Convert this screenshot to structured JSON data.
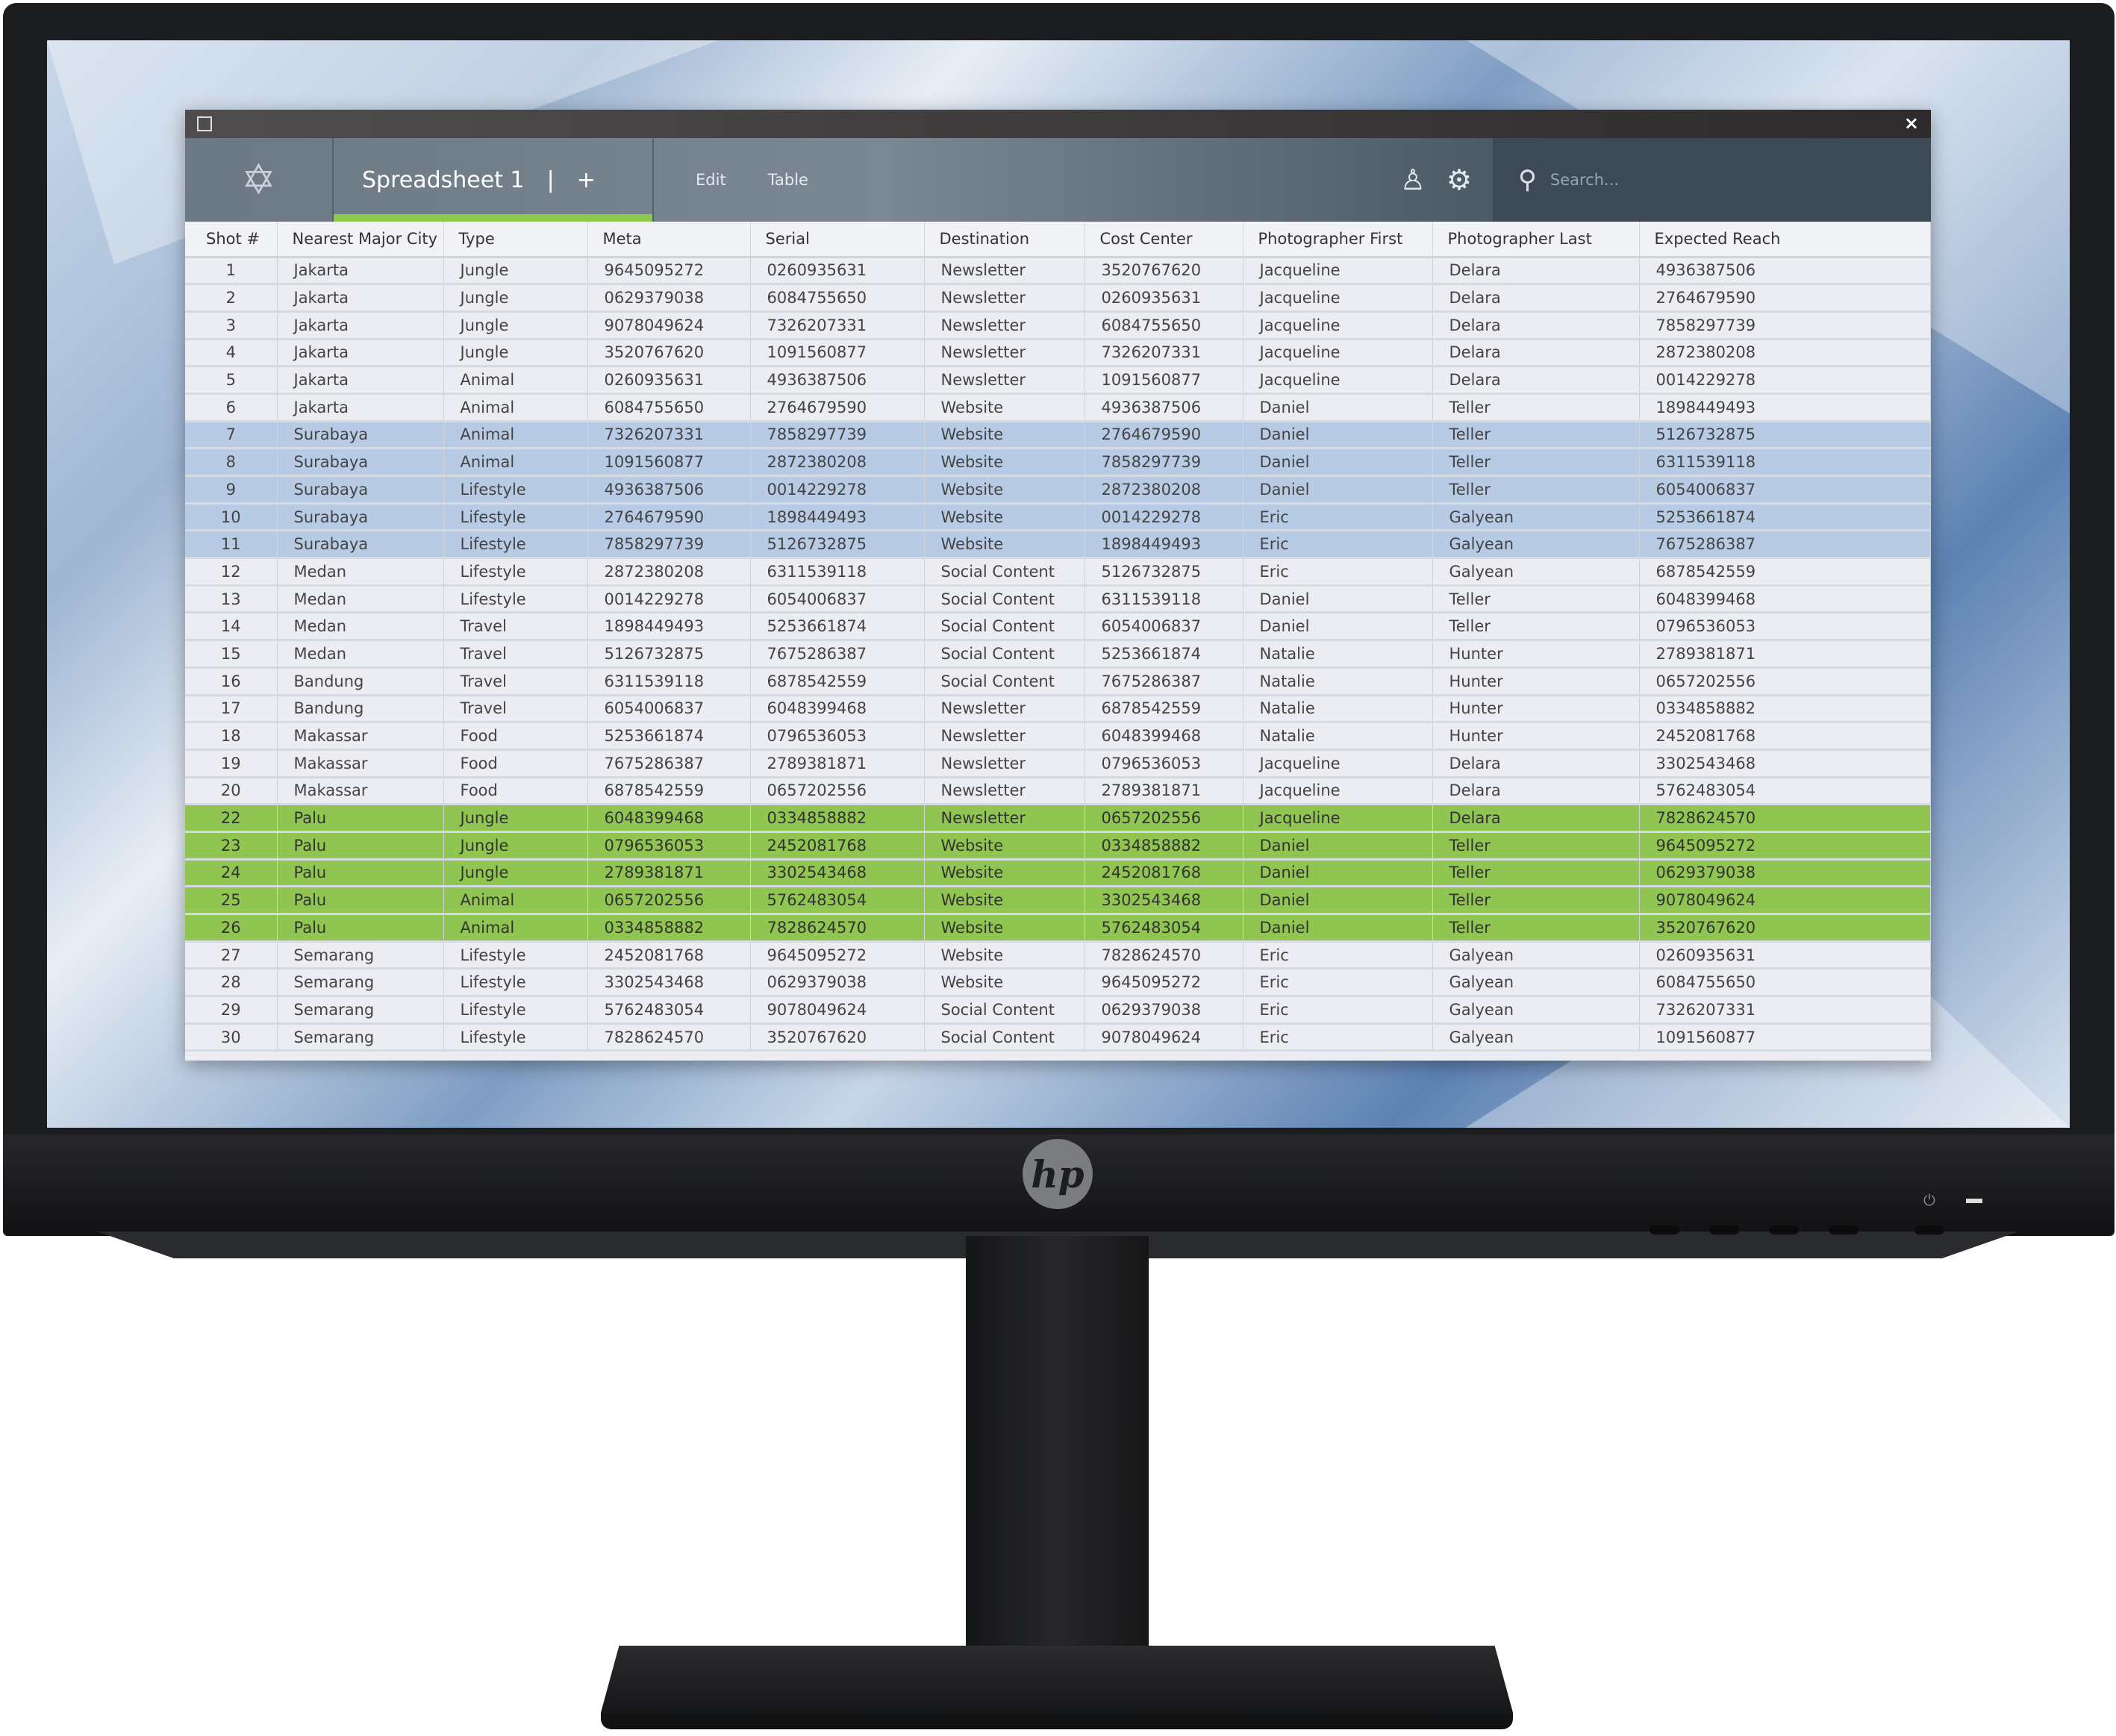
{
  "device": {
    "brand_logo": "hp"
  },
  "window": {
    "title_icon": "window-icon",
    "close_label": "×"
  },
  "header": {
    "tab_title": "Spreadsheet 1",
    "add_tab": "+",
    "menu": [
      "Edit",
      "Table"
    ],
    "search_placeholder": "Search...",
    "icons": [
      "user-icon",
      "gear-icon",
      "search-icon"
    ]
  },
  "colors": {
    "accent": "#8fc94d",
    "highlight_blue": "#b8cbe4",
    "highlight_green": "#8fc550"
  },
  "table": {
    "columns": [
      "Shot #",
      "Nearest Major City",
      "Type",
      "Meta",
      "Serial",
      "Destination",
      "Cost Center",
      "Photographer First",
      "Photographer Last",
      "Expected Reach"
    ],
    "rows": [
      {
        "h": "",
        "c": [
          "1",
          "Jakarta",
          "Jungle",
          "9645095272",
          "0260935631",
          "Newsletter",
          "3520767620",
          "Jacqueline",
          "Delara",
          "4936387506"
        ]
      },
      {
        "h": "",
        "c": [
          "2",
          "Jakarta",
          "Jungle",
          "0629379038",
          "6084755650",
          "Newsletter",
          "0260935631",
          "Jacqueline",
          "Delara",
          "2764679590"
        ]
      },
      {
        "h": "",
        "c": [
          "3",
          "Jakarta",
          "Jungle",
          "9078049624",
          "7326207331",
          "Newsletter",
          "6084755650",
          "Jacqueline",
          "Delara",
          "7858297739"
        ]
      },
      {
        "h": "",
        "c": [
          "4",
          "Jakarta",
          "Jungle",
          "3520767620",
          "1091560877",
          "Newsletter",
          "7326207331",
          "Jacqueline",
          "Delara",
          "2872380208"
        ]
      },
      {
        "h": "",
        "c": [
          "5",
          "Jakarta",
          "Animal",
          "0260935631",
          "4936387506",
          "Newsletter",
          "1091560877",
          "Jacqueline",
          "Delara",
          "0014229278"
        ]
      },
      {
        "h": "",
        "c": [
          "6",
          "Jakarta",
          "Animal",
          "6084755650",
          "2764679590",
          "Website",
          "4936387506",
          "Daniel",
          "Teller",
          "1898449493"
        ]
      },
      {
        "h": "blue",
        "c": [
          "7",
          "Surabaya",
          "Animal",
          "7326207331",
          "7858297739",
          "Website",
          "2764679590",
          "Daniel",
          "Teller",
          "5126732875"
        ]
      },
      {
        "h": "blue",
        "c": [
          "8",
          "Surabaya",
          "Animal",
          "1091560877",
          "2872380208",
          "Website",
          "7858297739",
          "Daniel",
          "Teller",
          "6311539118"
        ]
      },
      {
        "h": "blue",
        "c": [
          "9",
          "Surabaya",
          "Lifestyle",
          "4936387506",
          "0014229278",
          "Website",
          "2872380208",
          "Daniel",
          "Teller",
          "6054006837"
        ]
      },
      {
        "h": "blue",
        "c": [
          "10",
          "Surabaya",
          "Lifestyle",
          "2764679590",
          "1898449493",
          "Website",
          "0014229278",
          "Eric",
          "Galyean",
          "5253661874"
        ]
      },
      {
        "h": "blue",
        "c": [
          "11",
          "Surabaya",
          "Lifestyle",
          "7858297739",
          "5126732875",
          "Website",
          "1898449493",
          "Eric",
          "Galyean",
          "7675286387"
        ]
      },
      {
        "h": "",
        "c": [
          "12",
          "Medan",
          "Lifestyle",
          "2872380208",
          "6311539118",
          "Social Content",
          "5126732875",
          "Eric",
          "Galyean",
          "6878542559"
        ]
      },
      {
        "h": "",
        "c": [
          "13",
          "Medan",
          "Lifestyle",
          "0014229278",
          "6054006837",
          "Social Content",
          "6311539118",
          "Daniel",
          "Teller",
          "6048399468"
        ]
      },
      {
        "h": "",
        "c": [
          "14",
          "Medan",
          "Travel",
          "1898449493",
          "5253661874",
          "Social Content",
          "6054006837",
          "Daniel",
          "Teller",
          "0796536053"
        ]
      },
      {
        "h": "",
        "c": [
          "15",
          "Medan",
          "Travel",
          "5126732875",
          "7675286387",
          "Social Content",
          "5253661874",
          "Natalie",
          "Hunter",
          "2789381871"
        ]
      },
      {
        "h": "",
        "c": [
          "16",
          "Bandung",
          "Travel",
          "6311539118",
          "6878542559",
          "Social Content",
          "7675286387",
          "Natalie",
          "Hunter",
          "0657202556"
        ]
      },
      {
        "h": "",
        "c": [
          "17",
          "Bandung",
          "Travel",
          "6054006837",
          "6048399468",
          "Newsletter",
          "6878542559",
          "Natalie",
          "Hunter",
          "0334858882"
        ]
      },
      {
        "h": "",
        "c": [
          "18",
          "Makassar",
          "Food",
          "5253661874",
          "0796536053",
          "Newsletter",
          "6048399468",
          "Natalie",
          "Hunter",
          "2452081768"
        ]
      },
      {
        "h": "",
        "c": [
          "19",
          "Makassar",
          "Food",
          "7675286387",
          "2789381871",
          "Newsletter",
          "0796536053",
          "Jacqueline",
          "Delara",
          "3302543468"
        ]
      },
      {
        "h": "",
        "c": [
          "20",
          "Makassar",
          "Food",
          "6878542559",
          "0657202556",
          "Newsletter",
          "2789381871",
          "Jacqueline",
          "Delara",
          "5762483054"
        ]
      },
      {
        "h": "green",
        "c": [
          "22",
          "Palu",
          "Jungle",
          "6048399468",
          "0334858882",
          "Newsletter",
          "0657202556",
          "Jacqueline",
          "Delara",
          "7828624570"
        ]
      },
      {
        "h": "green",
        "c": [
          "23",
          "Palu",
          "Jungle",
          "0796536053",
          "2452081768",
          "Website",
          "0334858882",
          "Daniel",
          "Teller",
          "9645095272"
        ]
      },
      {
        "h": "green",
        "c": [
          "24",
          "Palu",
          "Jungle",
          "2789381871",
          "3302543468",
          "Website",
          "2452081768",
          "Daniel",
          "Teller",
          "0629379038"
        ]
      },
      {
        "h": "green",
        "c": [
          "25",
          "Palu",
          "Animal",
          "0657202556",
          "5762483054",
          "Website",
          "3302543468",
          "Daniel",
          "Teller",
          "9078049624"
        ]
      },
      {
        "h": "green",
        "c": [
          "26",
          "Palu",
          "Animal",
          "0334858882",
          "7828624570",
          "Website",
          "5762483054",
          "Daniel",
          "Teller",
          "3520767620"
        ]
      },
      {
        "h": "",
        "c": [
          "27",
          "Semarang",
          "Lifestyle",
          "2452081768",
          "9645095272",
          "Website",
          "7828624570",
          "Eric",
          "Galyean",
          "0260935631"
        ]
      },
      {
        "h": "",
        "c": [
          "28",
          "Semarang",
          "Lifestyle",
          "3302543468",
          "0629379038",
          "Website",
          "9645095272",
          "Eric",
          "Galyean",
          "6084755650"
        ]
      },
      {
        "h": "",
        "c": [
          "29",
          "Semarang",
          "Lifestyle",
          "5762483054",
          "9078049624",
          "Social Content",
          "0629379038",
          "Eric",
          "Galyean",
          "7326207331"
        ]
      },
      {
        "h": "",
        "c": [
          "30",
          "Semarang",
          "Lifestyle",
          "7828624570",
          "3520767620",
          "Social Content",
          "9078049624",
          "Eric",
          "Galyean",
          "1091560877"
        ]
      }
    ]
  }
}
